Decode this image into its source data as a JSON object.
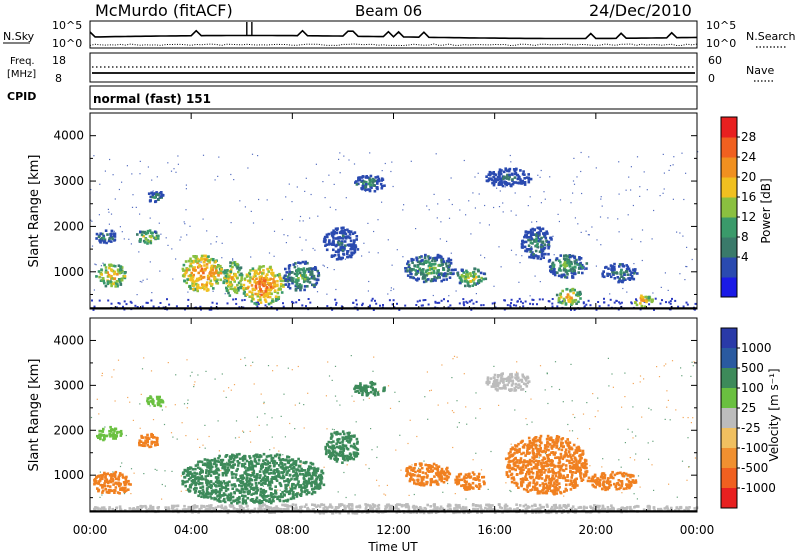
{
  "header": {
    "station": "McMurdo (fitACF)",
    "beam": "Beam 06",
    "date": "24/Dec/2010"
  },
  "noise_panel": {
    "left_label": "N.Sky",
    "right_label": "N.Search",
    "left_ticks": [
      "10^5",
      "10^0"
    ],
    "right_ticks": [
      "10^5",
      "10^0"
    ]
  },
  "freq_panel": {
    "left_label_line1": "Freq.",
    "left_label_line2": "[MHz]",
    "right_label": "Nave",
    "left_ticks": [
      "18",
      "8"
    ],
    "right_ticks": [
      "60",
      "0"
    ]
  },
  "cpid": {
    "label": "CPID",
    "value": "normal (fast) 151"
  },
  "colors": {
    "velocity_green": "#3d8a5a",
    "velocity_orange": "#f08020",
    "ground_grey": "#bcbcbc",
    "power_blue": "#2840b8"
  },
  "chart_data": [
    {
      "type": "heatmap",
      "name": "power",
      "ylabel": "Slant Range [km]",
      "ylim": [
        180,
        4500
      ],
      "yticks": [
        "1000",
        "2000",
        "3000",
        "4000"
      ],
      "xticks": [
        "00:00",
        "04:00",
        "08:00",
        "12:00",
        "16:00",
        "20:00",
        "00:00"
      ],
      "xlim_hours": [
        0,
        24
      ],
      "colorbar_label": "Power [dB]",
      "colorbar_ticks": [
        "28",
        "24",
        "20",
        "16",
        "12",
        "8",
        "4"
      ],
      "colorbar_colors": [
        "#1a1ae6",
        "#2a4ab0",
        "#3a7a6a",
        "#3a9a6a",
        "#8ac040",
        "#f0c020",
        "#f09020",
        "#f06020",
        "#e82020"
      ],
      "echo_regions": [
        {
          "t0": 0.2,
          "t1": 1.4,
          "r0": 700,
          "r1": 1200,
          "level": 6
        },
        {
          "t0": 0.2,
          "t1": 1.0,
          "r0": 1650,
          "r1": 1950,
          "level": 3
        },
        {
          "t0": 1.8,
          "t1": 2.7,
          "r0": 1650,
          "r1": 1950,
          "level": 5
        },
        {
          "t0": 2.2,
          "t1": 3.0,
          "r0": 2550,
          "r1": 2800,
          "level": 3
        },
        {
          "t0": 3.6,
          "t1": 5.2,
          "r0": 600,
          "r1": 1400,
          "level": 7
        },
        {
          "t0": 5.2,
          "t1": 6.0,
          "r0": 500,
          "r1": 1250,
          "level": 6
        },
        {
          "t0": 6.0,
          "t1": 7.6,
          "r0": 300,
          "r1": 1150,
          "level": 7
        },
        {
          "t0": 7.6,
          "t1": 9.0,
          "r0": 600,
          "r1": 1250,
          "level": 4
        },
        {
          "t0": 9.2,
          "t1": 10.6,
          "r0": 1300,
          "r1": 2000,
          "level": 2
        },
        {
          "t0": 10.4,
          "t1": 11.6,
          "r0": 2800,
          "r1": 3150,
          "level": 3
        },
        {
          "t0": 12.4,
          "t1": 14.4,
          "r0": 800,
          "r1": 1400,
          "level": 4
        },
        {
          "t0": 14.4,
          "t1": 15.6,
          "r0": 700,
          "r1": 1100,
          "level": 5
        },
        {
          "t0": 15.6,
          "t1": 17.4,
          "r0": 2900,
          "r1": 3300,
          "level": 2
        },
        {
          "t0": 17.0,
          "t1": 18.2,
          "r0": 1300,
          "r1": 2000,
          "level": 3
        },
        {
          "t0": 18.0,
          "t1": 19.6,
          "r0": 900,
          "r1": 1400,
          "level": 4
        },
        {
          "t0": 18.4,
          "t1": 19.4,
          "r0": 300,
          "r1": 650,
          "level": 6
        },
        {
          "t0": 20.2,
          "t1": 21.6,
          "r0": 800,
          "r1": 1200,
          "level": 3
        },
        {
          "t0": 21.4,
          "t1": 22.2,
          "r0": 250,
          "r1": 500,
          "level": 7
        }
      ]
    },
    {
      "type": "heatmap",
      "name": "velocity",
      "ylabel": "Slant Range [km]",
      "ylim": [
        180,
        4500
      ],
      "yticks": [
        "1000",
        "2000",
        "3000",
        "4000"
      ],
      "xticks": [
        "00:00",
        "04:00",
        "08:00",
        "12:00",
        "16:00",
        "20:00",
        "00:00"
      ],
      "xlabel": "Time UT",
      "xlim_hours": [
        0,
        24
      ],
      "colorbar_label": "Velocity [m s⁻¹]",
      "colorbar_ticks": [
        "1000",
        "500",
        "100",
        "25",
        "-25",
        "-100",
        "-500",
        "-1000"
      ],
      "colorbar_colors": [
        "#2a3aa8",
        "#2a5aa0",
        "#3d8a5a",
        "#6ac040",
        "#bcbcbc",
        "#f0c060",
        "#f09030",
        "#f06020",
        "#e82020"
      ],
      "echo_regions": [
        {
          "t0": 0.1,
          "t1": 1.6,
          "r0": 600,
          "r1": 1100,
          "color": "#f08020"
        },
        {
          "t0": 0.2,
          "t1": 1.2,
          "r0": 1800,
          "r1": 2100,
          "color": "#6ac040"
        },
        {
          "t0": 1.8,
          "t1": 2.7,
          "r0": 1650,
          "r1": 1950,
          "color": "#f08020"
        },
        {
          "t0": 2.2,
          "t1": 2.9,
          "r0": 2550,
          "r1": 2800,
          "color": "#6ac040"
        },
        {
          "t0": 3.6,
          "t1": 9.2,
          "r0": 400,
          "r1": 1500,
          "color": "#3d8a5a"
        },
        {
          "t0": 9.2,
          "t1": 10.6,
          "r0": 1300,
          "r1": 2000,
          "color": "#3d8a5a"
        },
        {
          "t0": 10.4,
          "t1": 11.6,
          "r0": 2800,
          "r1": 3100,
          "color": "#3d8a5a"
        },
        {
          "t0": 12.4,
          "t1": 14.2,
          "r0": 800,
          "r1": 1300,
          "color": "#f08020"
        },
        {
          "t0": 14.4,
          "t1": 15.6,
          "r0": 700,
          "r1": 1100,
          "color": "#f08020"
        },
        {
          "t0": 15.6,
          "t1": 17.4,
          "r0": 2900,
          "r1": 3300,
          "color": "#bcbcbc"
        },
        {
          "t0": 16.4,
          "t1": 19.6,
          "r0": 600,
          "r1": 1900,
          "color": "#f08020"
        },
        {
          "t0": 19.6,
          "t1": 21.6,
          "r0": 700,
          "r1": 1100,
          "color": "#f08020"
        },
        {
          "t0": 0.0,
          "t1": 24.0,
          "r0": 180,
          "r1": 380,
          "color": "#bcbcbc"
        }
      ]
    }
  ]
}
